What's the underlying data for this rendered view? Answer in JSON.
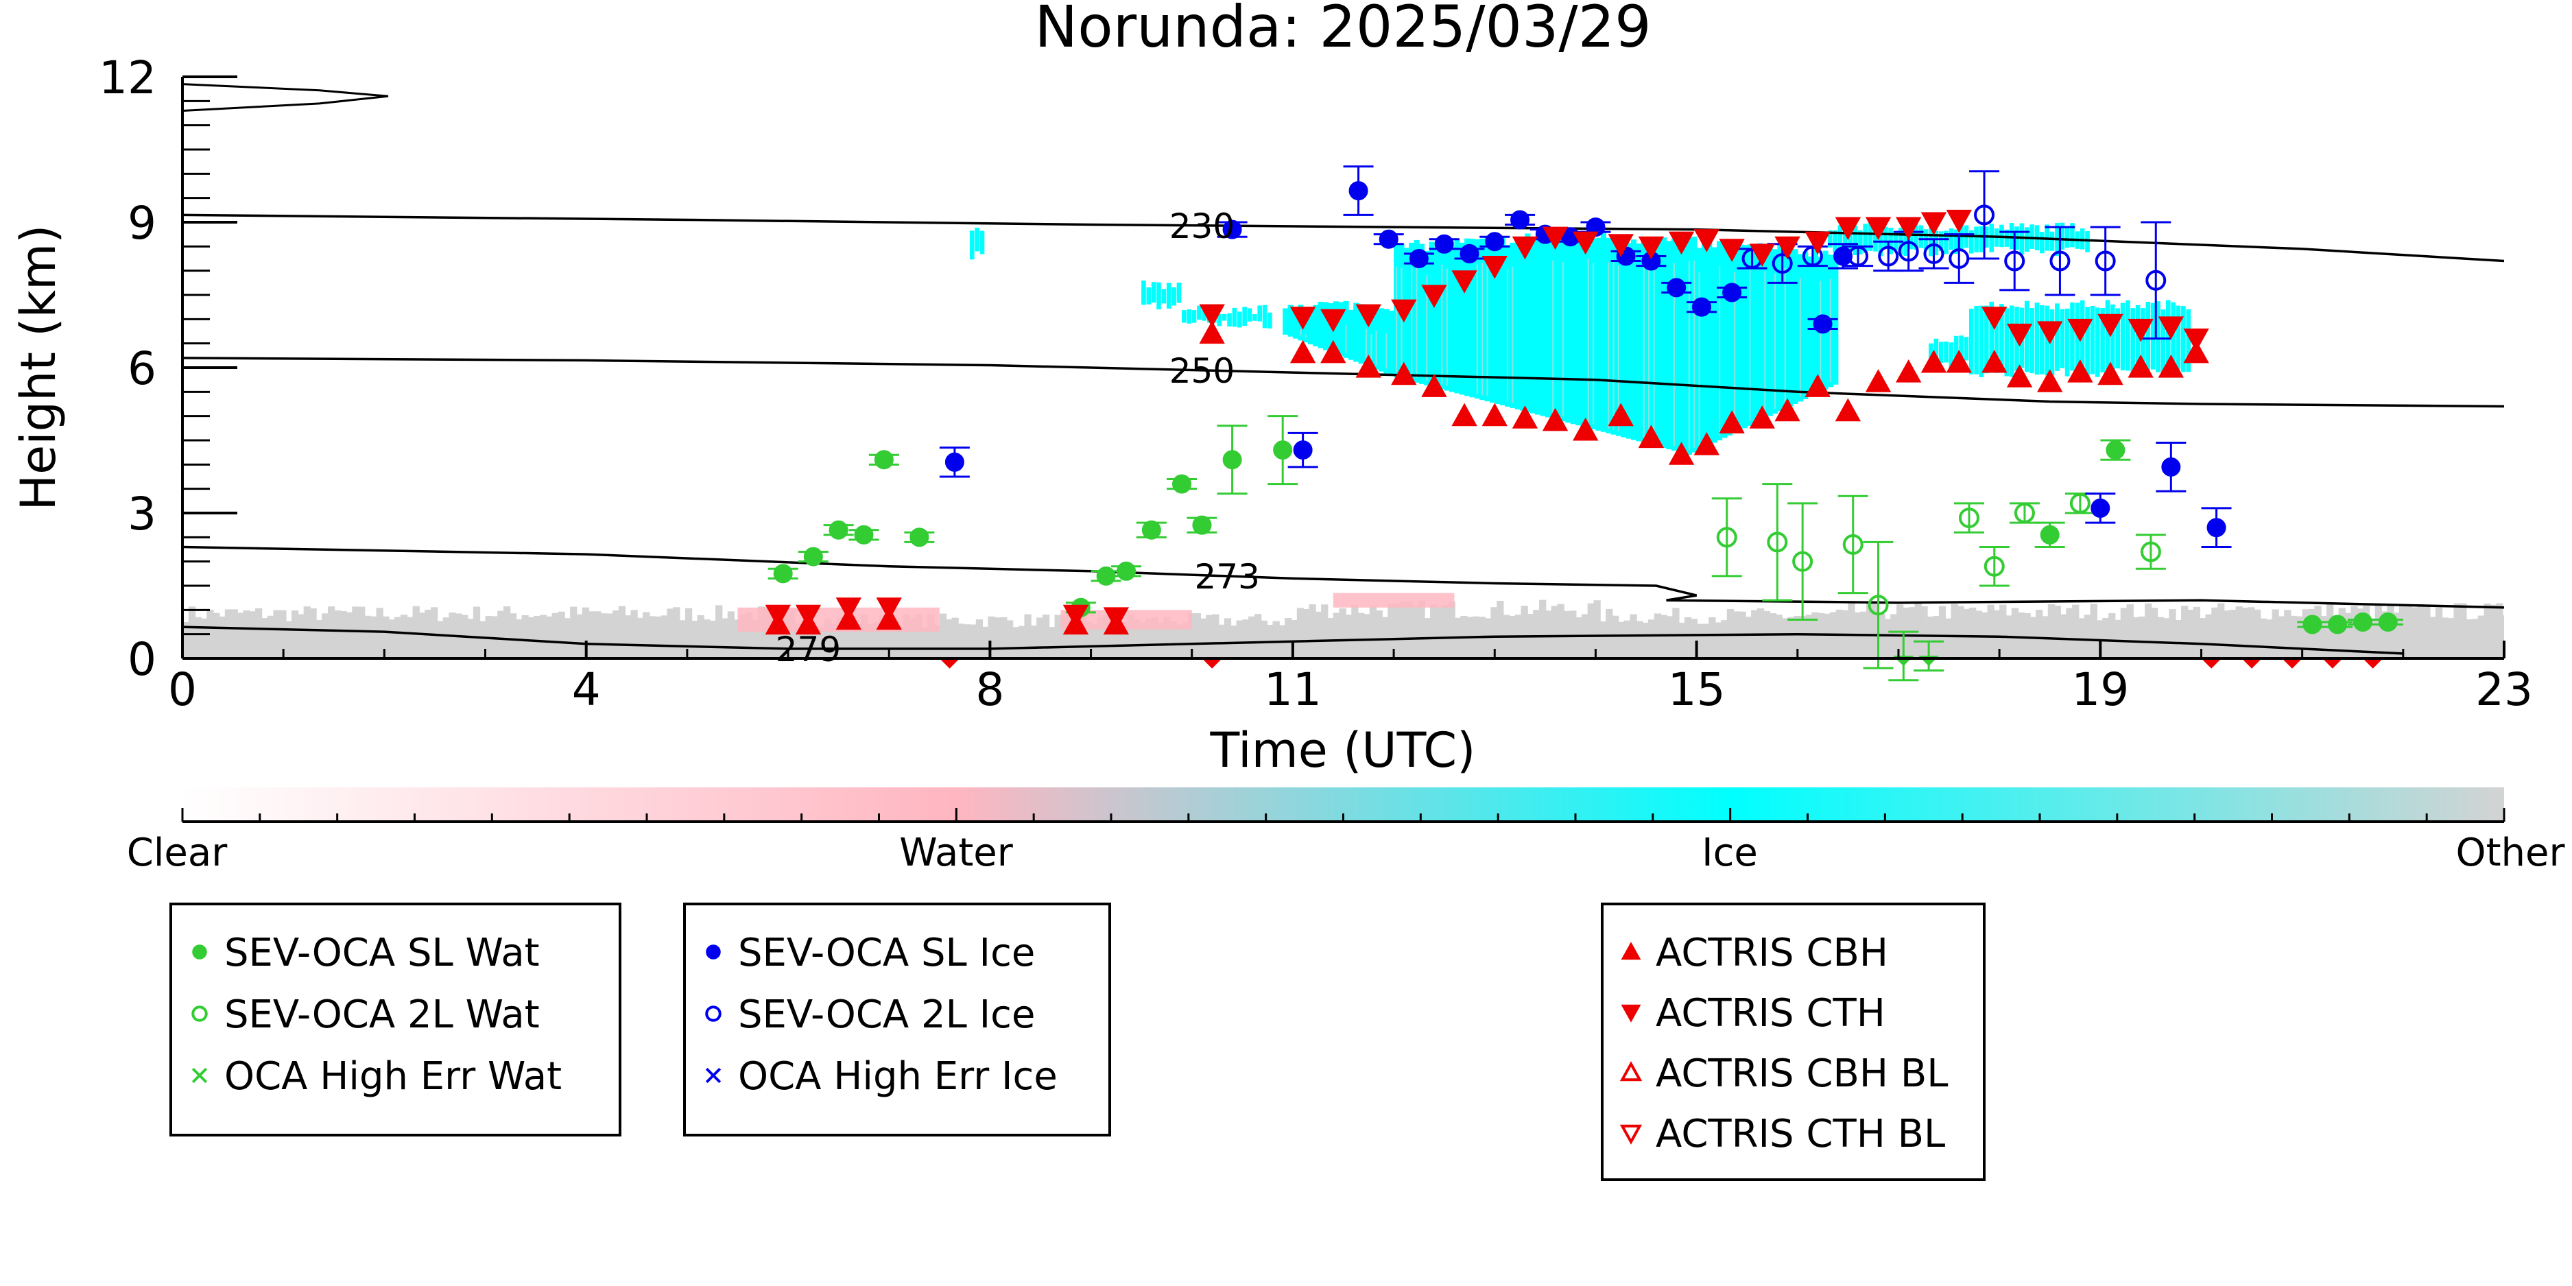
{
  "chart_data": {
    "type": "scatter",
    "title": "Norunda: 2025/03/29",
    "xlabel": "Time (UTC)",
    "ylabel": "Height (km)",
    "xlim": [
      0,
      23
    ],
    "ylim": [
      0,
      12
    ],
    "x_ticks": [
      0,
      4,
      8,
      11,
      15,
      19,
      23
    ],
    "y_ticks": [
      0,
      3,
      6,
      9,
      12
    ],
    "colorbar": {
      "labels": [
        "Clear",
        "Water",
        "Ice",
        "Other"
      ],
      "colors": [
        "#ffffff",
        "#ffb6c1",
        "#00ffff",
        "#d3d3d3"
      ]
    },
    "isotherms": [
      {
        "label": "230",
        "label_x": 10.1,
        "points": [
          [
            0,
            9.15
          ],
          [
            5,
            9.05
          ],
          [
            9,
            8.95
          ],
          [
            12,
            8.9
          ],
          [
            15,
            8.85
          ],
          [
            18,
            8.7
          ],
          [
            21,
            8.45
          ],
          [
            23,
            8.2
          ]
        ]
      },
      {
        "label": "250",
        "label_x": 10.1,
        "points": [
          [
            0,
            6.2
          ],
          [
            4,
            6.15
          ],
          [
            8,
            6.05
          ],
          [
            11,
            5.9
          ],
          [
            14,
            5.75
          ],
          [
            16,
            5.5
          ],
          [
            18.5,
            5.3
          ],
          [
            20,
            5.25
          ],
          [
            23,
            5.2
          ]
        ]
      },
      {
        "label": "273",
        "label_x": 10.35,
        "points": [
          [
            0,
            2.3
          ],
          [
            4,
            2.15
          ],
          [
            7,
            1.9
          ],
          [
            9,
            1.8
          ],
          [
            11,
            1.65
          ],
          [
            13,
            1.55
          ],
          [
            14.6,
            1.5
          ],
          [
            15,
            1.3
          ],
          [
            14.7,
            1.2
          ],
          [
            17,
            1.15
          ],
          [
            20,
            1.2
          ],
          [
            23,
            1.05
          ]
        ]
      },
      {
        "label": "279",
        "label_x": 6.2,
        "points": [
          [
            0,
            0.65
          ],
          [
            2,
            0.55
          ],
          [
            4,
            0.3
          ],
          [
            6,
            0.2
          ],
          [
            8,
            0.2
          ],
          [
            10,
            0.3
          ],
          [
            13,
            0.45
          ],
          [
            16,
            0.5
          ],
          [
            18,
            0.45
          ],
          [
            20,
            0.3
          ],
          [
            22,
            0.1
          ]
        ]
      }
    ],
    "series": [
      {
        "name": "SEV-OCA SL Wat",
        "color": "#33cc33",
        "marker": "filled-circle",
        "points": [
          [
            5.95,
            1.75,
            0.1
          ],
          [
            6.25,
            2.1,
            0.1
          ],
          [
            6.5,
            2.65,
            0.1
          ],
          [
            6.75,
            2.55,
            0.1
          ],
          [
            6.95,
            4.1,
            0.1
          ],
          [
            7.3,
            2.5,
            0.1
          ],
          [
            8.9,
            1.05,
            0.1
          ],
          [
            9.15,
            1.7,
            0.1
          ],
          [
            9.35,
            1.8,
            0.1
          ],
          [
            9.6,
            2.65,
            0.15
          ],
          [
            9.9,
            3.6,
            0.1
          ],
          [
            10.1,
            2.75,
            0.15
          ],
          [
            10.4,
            4.1,
            0.7
          ],
          [
            10.9,
            4.3,
            0.7
          ],
          [
            18.5,
            2.55,
            0.25
          ],
          [
            19.15,
            4.3,
            0.2
          ],
          [
            21.1,
            0.7,
            0.05
          ],
          [
            21.35,
            0.7,
            0.05
          ],
          [
            21.6,
            0.75,
            0.05
          ],
          [
            21.85,
            0.75,
            0.05
          ]
        ]
      },
      {
        "name": "SEV-OCA 2L Wat",
        "color": "#33cc33",
        "marker": "open-circle",
        "points": [
          [
            15.3,
            2.5,
            0.8
          ],
          [
            15.8,
            2.4,
            1.2
          ],
          [
            16.05,
            2.0,
            1.2
          ],
          [
            16.55,
            2.35,
            1.0
          ],
          [
            16.8,
            1.1,
            1.3
          ],
          [
            17.05,
            0.05,
            0.5
          ],
          [
            17.3,
            0.05,
            0.3
          ],
          [
            17.7,
            2.9,
            0.3
          ],
          [
            17.95,
            1.9,
            0.4
          ],
          [
            18.25,
            3.0,
            0.2
          ],
          [
            18.8,
            3.2,
            0.2
          ],
          [
            19.5,
            2.2,
            0.35
          ]
        ]
      },
      {
        "name": "OCA High Err Wat",
        "color": "#33cc33",
        "marker": "x",
        "points": []
      },
      {
        "name": "SEV-OCA SL Ice",
        "color": "#0000ee",
        "marker": "filled-circle",
        "points": [
          [
            7.65,
            4.05,
            0.3
          ],
          [
            10.4,
            8.85,
            0.15
          ],
          [
            11.1,
            4.3,
            0.35
          ],
          [
            11.65,
            9.65,
            0.5
          ],
          [
            11.95,
            8.65,
            0.1
          ],
          [
            12.25,
            8.25,
            0.1
          ],
          [
            12.5,
            8.55,
            0.1
          ],
          [
            12.75,
            8.35,
            0.1
          ],
          [
            13.0,
            8.6,
            0.1
          ],
          [
            13.25,
            9.05,
            0.1
          ],
          [
            13.5,
            8.75,
            0.1
          ],
          [
            13.75,
            8.7,
            0.1
          ],
          [
            14.0,
            8.9,
            0.1
          ],
          [
            14.3,
            8.3,
            0.1
          ],
          [
            14.55,
            8.2,
            0.1
          ],
          [
            14.8,
            7.65,
            0.1
          ],
          [
            15.05,
            7.25,
            0.1
          ],
          [
            15.35,
            7.55,
            0.1
          ],
          [
            16.25,
            6.9,
            0.1
          ],
          [
            16.45,
            8.3,
            0.25
          ],
          [
            19.0,
            3.1,
            0.3
          ],
          [
            19.7,
            3.95,
            0.5
          ],
          [
            20.15,
            2.7,
            0.4
          ]
        ]
      },
      {
        "name": "SEV-OCA 2L Ice",
        "color": "#0000ee",
        "marker": "open-circle",
        "points": [
          [
            15.55,
            8.25,
            0.2
          ],
          [
            15.85,
            8.15,
            0.4
          ],
          [
            16.15,
            8.3,
            0.2
          ],
          [
            16.6,
            8.3,
            0.2
          ],
          [
            16.9,
            8.3,
            0.3
          ],
          [
            17.1,
            8.4,
            0.4
          ],
          [
            17.35,
            8.35,
            0.3
          ],
          [
            17.6,
            8.25,
            0.5
          ],
          [
            17.85,
            9.15,
            0.9
          ],
          [
            18.15,
            8.2,
            0.6
          ],
          [
            18.6,
            8.2,
            0.7
          ],
          [
            19.05,
            8.2,
            0.7
          ],
          [
            19.55,
            7.8,
            1.2
          ]
        ]
      },
      {
        "name": "OCA High Err Ice",
        "color": "#0000ee",
        "marker": "x",
        "points": []
      },
      {
        "name": "ACTRIS CBH",
        "color": "#ee0000",
        "marker": "filled-triangle-up",
        "points": [
          [
            5.9,
            0.7
          ],
          [
            6.2,
            0.7
          ],
          [
            6.6,
            0.8
          ],
          [
            7.0,
            0.8
          ],
          [
            8.85,
            0.7
          ],
          [
            9.25,
            0.7
          ],
          [
            10.2,
            6.7
          ],
          [
            11.1,
            6.3
          ],
          [
            11.4,
            6.3
          ],
          [
            11.75,
            6.0
          ],
          [
            12.1,
            5.85
          ],
          [
            12.4,
            5.6
          ],
          [
            12.7,
            5.0
          ],
          [
            13.0,
            5.0
          ],
          [
            13.3,
            4.95
          ],
          [
            13.6,
            4.9
          ],
          [
            13.9,
            4.7
          ],
          [
            14.25,
            5.0
          ],
          [
            14.55,
            4.55
          ],
          [
            14.85,
            4.2
          ],
          [
            15.1,
            4.4
          ],
          [
            15.35,
            4.85
          ],
          [
            15.65,
            4.95
          ],
          [
            15.9,
            5.1
          ],
          [
            16.2,
            5.6
          ],
          [
            16.5,
            5.1
          ],
          [
            16.8,
            5.7
          ],
          [
            17.1,
            5.9
          ],
          [
            17.35,
            6.1
          ],
          [
            17.6,
            6.1
          ],
          [
            17.95,
            6.1
          ],
          [
            18.2,
            5.8
          ],
          [
            18.5,
            5.7
          ],
          [
            18.8,
            5.9
          ],
          [
            19.1,
            5.85
          ],
          [
            19.4,
            6.0
          ],
          [
            19.7,
            6.0
          ],
          [
            19.95,
            6.3
          ]
        ]
      },
      {
        "name": "ACTRIS CTH",
        "color": "#ee0000",
        "marker": "filled-triangle-down",
        "points": [
          [
            5.9,
            0.9
          ],
          [
            6.2,
            0.9
          ],
          [
            6.6,
            1.05
          ],
          [
            7.0,
            1.05
          ],
          [
            8.85,
            0.9
          ],
          [
            9.25,
            0.85
          ],
          [
            10.2,
            7.1
          ],
          [
            11.1,
            7.05
          ],
          [
            11.4,
            7.0
          ],
          [
            11.75,
            7.1
          ],
          [
            12.1,
            7.2
          ],
          [
            12.4,
            7.5
          ],
          [
            12.7,
            7.8
          ],
          [
            13.0,
            8.1
          ],
          [
            13.3,
            8.5
          ],
          [
            13.6,
            8.7
          ],
          [
            13.9,
            8.6
          ],
          [
            14.25,
            8.55
          ],
          [
            14.55,
            8.5
          ],
          [
            14.85,
            8.6
          ],
          [
            15.1,
            8.65
          ],
          [
            15.35,
            8.45
          ],
          [
            15.65,
            8.35
          ],
          [
            15.9,
            8.5
          ],
          [
            16.2,
            8.6
          ],
          [
            16.5,
            8.9
          ],
          [
            16.8,
            8.9
          ],
          [
            17.1,
            8.9
          ],
          [
            17.35,
            9.0
          ],
          [
            17.6,
            9.05
          ],
          [
            17.95,
            7.05
          ],
          [
            18.2,
            6.7
          ],
          [
            18.5,
            6.75
          ],
          [
            18.8,
            6.8
          ],
          [
            19.1,
            6.9
          ],
          [
            19.4,
            6.8
          ],
          [
            19.7,
            6.85
          ],
          [
            19.95,
            6.6
          ],
          [
            7.6,
            0.0
          ],
          [
            10.2,
            0.0
          ],
          [
            20.1,
            0.0
          ],
          [
            20.5,
            0.0
          ],
          [
            20.9,
            0.0
          ],
          [
            21.3,
            0.0
          ],
          [
            21.7,
            0.0
          ]
        ]
      },
      {
        "name": "ACTRIS CBH BL",
        "color": "#ee0000",
        "marker": "open-triangle-up",
        "points": []
      },
      {
        "name": "ACTRIS CTH BL",
        "color": "#ee0000",
        "marker": "open-triangle-down",
        "points": []
      }
    ],
    "legends": [
      [
        "SEV-OCA SL Wat",
        "SEV-OCA 2L Wat",
        "OCA High Err Wat"
      ],
      [
        "SEV-OCA SL Ice",
        "SEV-OCA 2L Ice",
        "OCA High Err Ice"
      ],
      [
        "ACTRIS CBH",
        "ACTRIS CTH",
        "ACTRIS CBH BL",
        "ACTRIS CTH BL"
      ]
    ]
  }
}
